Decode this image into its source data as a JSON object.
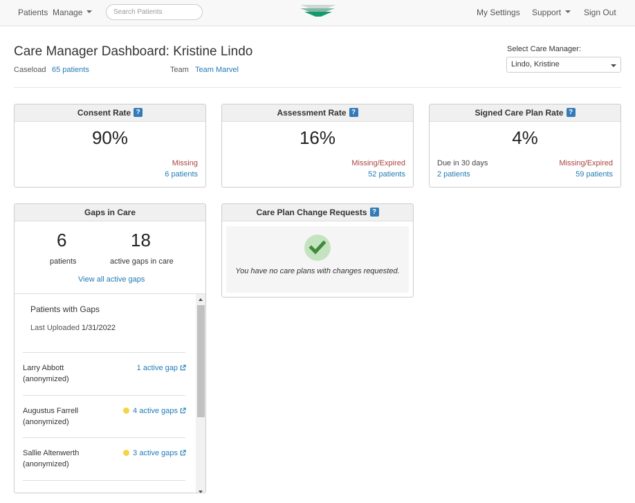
{
  "nav": {
    "patients": "Patients",
    "manage": "Manage",
    "search_placeholder": "Search Patients",
    "my_settings": "My Settings",
    "support": "Support",
    "sign_out": "Sign Out",
    "logo_icon": "stacked-layers-logo"
  },
  "header": {
    "title": "Care Manager Dashboard: Kristine Lindo",
    "caseload_label": "Caseload",
    "caseload_value": "65 patients",
    "team_label": "Team",
    "team_value": "Team Marvel",
    "select_label": "Select Care Manager:",
    "select_value": "Lindo, Kristine"
  },
  "help_glyph": "?",
  "consent": {
    "title": "Consent Rate",
    "value": "90%",
    "status": "Missing",
    "count": "6 patients"
  },
  "assessment": {
    "title": "Assessment Rate",
    "value": "16%",
    "status": "Missing/Expired",
    "count": "52 patients"
  },
  "signed": {
    "title": "Signed Care Plan Rate",
    "value": "4%",
    "due_label": "Due in 30 days",
    "due_count": "2 patients",
    "status": "Missing/Expired",
    "count": "59 patients"
  },
  "gaps": {
    "title": "Gaps in Care",
    "patients_num": "6",
    "patients_label": "patients",
    "gaps_num": "18",
    "gaps_label": "active gaps in care",
    "view_all": "View all active gaps",
    "list_title": "Patients with Gaps",
    "uploaded_label": "Last Uploaded",
    "uploaded_value": "1/31/2022",
    "rows": [
      {
        "name": "Larry Abbott",
        "note": "(anonymized)",
        "gaps": "1 active gap",
        "flag": false
      },
      {
        "name": "Augustus Farrell",
        "note": "(anonymized)",
        "gaps": "4 active gaps",
        "flag": true
      },
      {
        "name": "Sallie Altenwerth",
        "note": "(anonymized)",
        "gaps": "3 active gaps",
        "flag": true
      }
    ]
  },
  "change_requests": {
    "title": "Care Plan Change Requests",
    "empty_text": "You have no care plans with changes requested."
  },
  "colors": {
    "link": "#1f7bb5",
    "alert": "#a94442",
    "help_badge": "#337ab7",
    "check": "#3f8a3a",
    "flag_dot": "#f5d547"
  }
}
